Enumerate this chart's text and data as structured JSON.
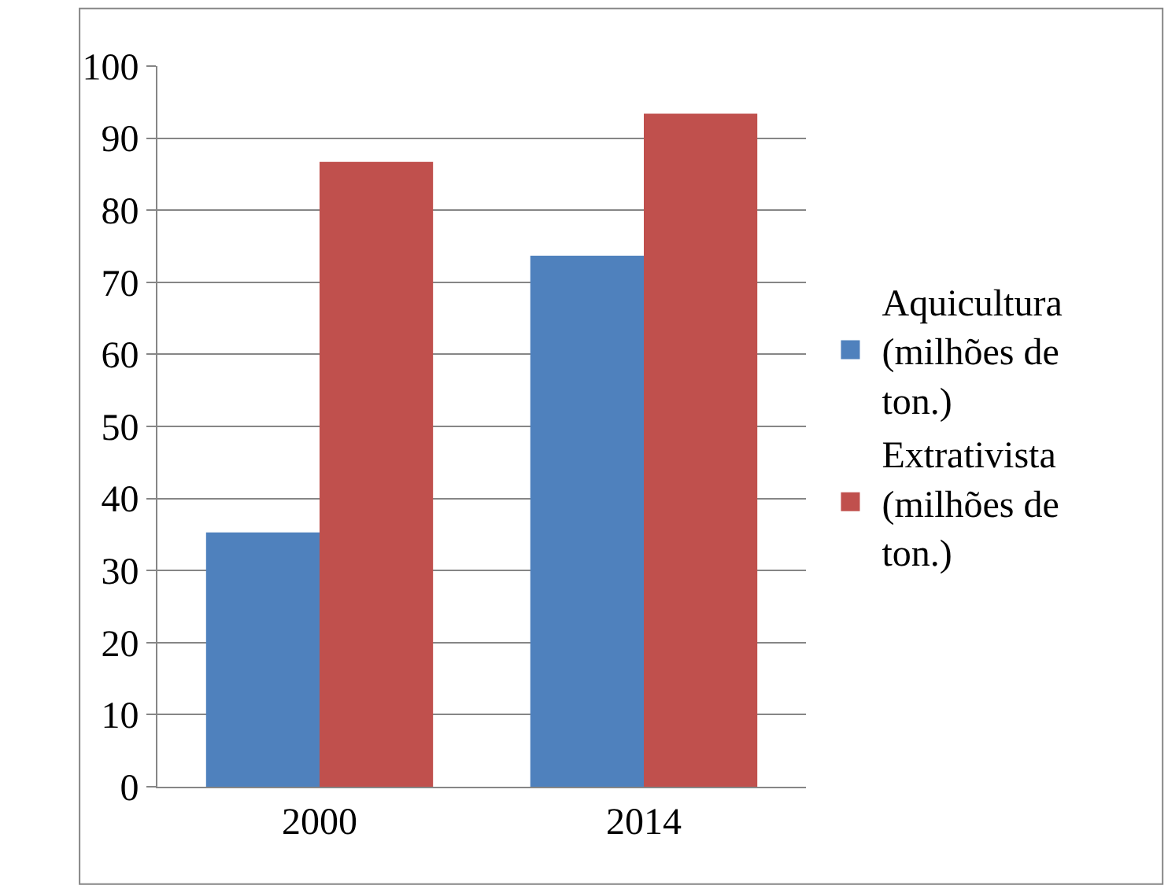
{
  "chart_data": {
    "type": "bar",
    "categories": [
      "2000",
      "2014"
    ],
    "series": [
      {
        "name": "Aquicultura (milhões de ton.)",
        "color": "#4f81bd",
        "values": [
          35.3,
          73.7
        ]
      },
      {
        "name": "Extrativista (milhões de ton.)",
        "color": "#c0504d",
        "values": [
          86.7,
          93.4
        ]
      }
    ],
    "ylim": [
      0,
      100
    ],
    "yticks": [
      0,
      10,
      20,
      30,
      40,
      50,
      60,
      70,
      80,
      90,
      100
    ],
    "grid": "y",
    "legend": "right"
  }
}
